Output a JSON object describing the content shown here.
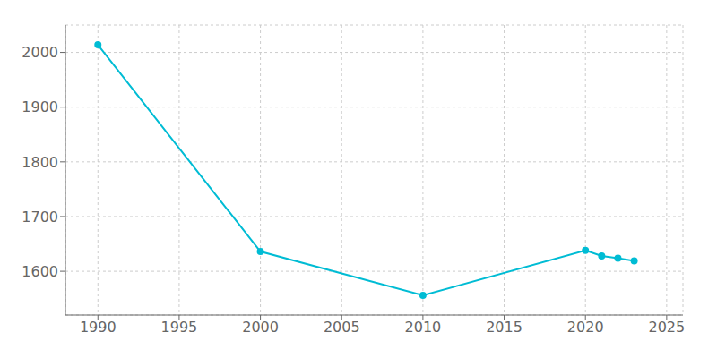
{
  "chart_data": {
    "type": "line",
    "x": [
      1990,
      2000,
      2010,
      2020,
      2021,
      2022,
      2023
    ],
    "values": [
      2014,
      1636,
      1556,
      1638,
      1628,
      1624,
      1619
    ],
    "color": "#00bcd4",
    "marker": "circle",
    "xlim": [
      1988,
      2026
    ],
    "ylim": [
      1520,
      2050
    ],
    "xticks": [
      1990,
      1995,
      2000,
      2005,
      2010,
      2015,
      2020,
      2025
    ],
    "yticks": [
      1600,
      1700,
      1800,
      1900,
      2000
    ],
    "grid": true
  }
}
